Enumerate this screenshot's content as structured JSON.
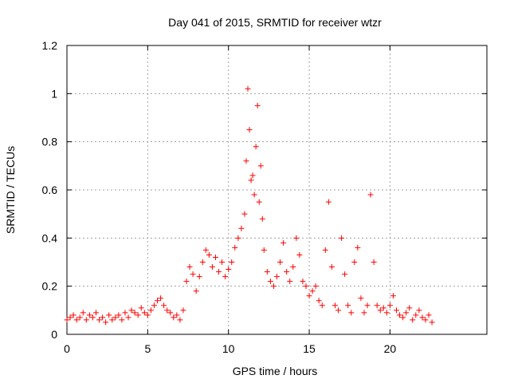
{
  "chart_data": {
    "type": "scatter",
    "title": "Day 041 of 2015, SRMTID for receiver wtzr",
    "xlabel": "GPS time / hours",
    "ylabel": "SRMTID / TECUs",
    "xlim": [
      0,
      26
    ],
    "ylim": [
      0,
      1.2
    ],
    "xticks": [
      0,
      5,
      10,
      15,
      20
    ],
    "yticks": [
      0,
      0.2,
      0.4,
      0.6,
      0.8,
      1,
      1.2
    ],
    "ytick_labels": [
      "0",
      "0.2",
      "0.4",
      "0.6",
      "0.8",
      "1",
      "1.2"
    ],
    "grid": true,
    "marker": "+",
    "color": "#ff0000",
    "series": [
      {
        "name": "SRMTID",
        "x": [
          0.0,
          0.2,
          0.4,
          0.6,
          0.8,
          1.0,
          1.2,
          1.4,
          1.6,
          1.8,
          2.0,
          2.2,
          2.4,
          2.6,
          2.8,
          3.0,
          3.2,
          3.4,
          3.6,
          3.8,
          4.0,
          4.2,
          4.4,
          4.6,
          4.8,
          5.0,
          5.2,
          5.4,
          5.6,
          5.8,
          6.0,
          6.2,
          6.4,
          6.6,
          6.8,
          7.0,
          7.2,
          7.4,
          7.6,
          7.8,
          8.0,
          8.2,
          8.4,
          8.6,
          8.8,
          9.0,
          9.2,
          9.4,
          9.6,
          9.8,
          10.0,
          10.2,
          10.4,
          10.6,
          10.8,
          11.0,
          11.1,
          11.2,
          11.3,
          11.4,
          11.5,
          11.6,
          11.7,
          11.8,
          11.9,
          12.0,
          12.1,
          12.2,
          12.4,
          12.6,
          12.8,
          13.0,
          13.2,
          13.4,
          13.6,
          13.8,
          14.0,
          14.2,
          14.4,
          14.6,
          14.8,
          15.0,
          15.2,
          15.4,
          15.6,
          15.8,
          16.0,
          16.2,
          16.4,
          16.6,
          16.8,
          17.0,
          17.2,
          17.4,
          17.6,
          17.8,
          18.0,
          18.2,
          18.4,
          18.6,
          18.8,
          19.0,
          19.2,
          19.4,
          19.6,
          19.8,
          20.0,
          20.2,
          20.4,
          20.6,
          20.8,
          21.0,
          21.2,
          21.4,
          21.6,
          21.8,
          22.0,
          22.2,
          22.4,
          22.6
        ],
        "y": [
          0.06,
          0.07,
          0.08,
          0.06,
          0.07,
          0.09,
          0.06,
          0.08,
          0.07,
          0.09,
          0.06,
          0.07,
          0.05,
          0.08,
          0.06,
          0.07,
          0.08,
          0.06,
          0.09,
          0.07,
          0.1,
          0.09,
          0.08,
          0.11,
          0.09,
          0.08,
          0.1,
          0.12,
          0.14,
          0.15,
          0.12,
          0.1,
          0.09,
          0.07,
          0.08,
          0.06,
          0.1,
          0.22,
          0.28,
          0.25,
          0.18,
          0.24,
          0.3,
          0.35,
          0.33,
          0.28,
          0.32,
          0.26,
          0.3,
          0.24,
          0.27,
          0.3,
          0.36,
          0.4,
          0.44,
          0.5,
          0.72,
          1.02,
          0.85,
          0.64,
          0.66,
          0.58,
          0.78,
          0.95,
          0.55,
          0.7,
          0.48,
          0.35,
          0.26,
          0.22,
          0.2,
          0.24,
          0.3,
          0.38,
          0.26,
          0.22,
          0.28,
          0.4,
          0.33,
          0.22,
          0.2,
          0.16,
          0.18,
          0.2,
          0.14,
          0.12,
          0.35,
          0.55,
          0.28,
          0.12,
          0.1,
          0.4,
          0.25,
          0.12,
          0.09,
          0.3,
          0.36,
          0.15,
          0.09,
          0.12,
          0.58,
          0.3,
          0.12,
          0.1,
          0.11,
          0.09,
          0.12,
          0.16,
          0.1,
          0.08,
          0.07,
          0.09,
          0.11,
          0.06,
          0.08,
          0.1,
          0.07,
          0.06,
          0.08,
          0.05
        ]
      }
    ]
  }
}
